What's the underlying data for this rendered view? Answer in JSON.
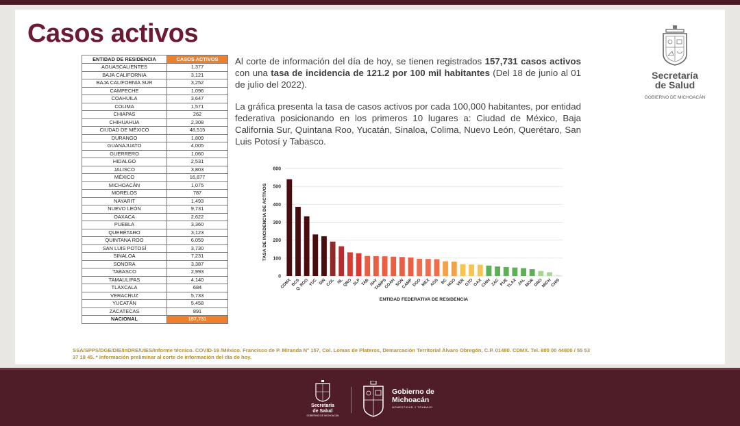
{
  "title": "Casos activos",
  "table": {
    "headers": [
      "ENTIDAD DE RESIDENCIA",
      "CASOS ACTIVOS"
    ],
    "rows": [
      [
        "AGUASCALIENTES",
        "1,377"
      ],
      [
        "BAJA CALIFORNIA",
        "3,121"
      ],
      [
        "BAJA CALIFORNIA SUR",
        "3,252"
      ],
      [
        "CAMPECHE",
        "1,096"
      ],
      [
        "COAHUILA",
        "3,647"
      ],
      [
        "COLIMA",
        "1,571"
      ],
      [
        "CHIAPAS",
        "262"
      ],
      [
        "CHIHUAHUA",
        "2,308"
      ],
      [
        "CIUDAD DE MÉXICO",
        "48,515"
      ],
      [
        "DURANGO",
        "1,809"
      ],
      [
        "GUANAJUATO",
        "4,005"
      ],
      [
        "GUERRERO",
        "1,060"
      ],
      [
        "HIDALGO",
        "2,531"
      ],
      [
        "JALISCO",
        "3,803"
      ],
      [
        "MÉXICO",
        "16,877"
      ],
      [
        "MICHOACÁN",
        "1,075"
      ],
      [
        "MORELOS",
        "787"
      ],
      [
        "NAYARIT",
        "1,493"
      ],
      [
        "NUEVO LEÓN",
        "9,731"
      ],
      [
        "OAXACA",
        "2,622"
      ],
      [
        "PUEBLA",
        "3,360"
      ],
      [
        "QUERÉTARO",
        "3,123"
      ],
      [
        "QUINTANA ROO",
        "6,059"
      ],
      [
        "SAN LUIS POTOSÍ",
        "3,730"
      ],
      [
        "SINALOA",
        "7,231"
      ],
      [
        "SONORA",
        "3,387"
      ],
      [
        "TABASCO",
        "2,993"
      ],
      [
        "TAMAULIPAS",
        "4,140"
      ],
      [
        "TLAXCALA",
        "684"
      ],
      [
        "VERACRUZ",
        "5,733"
      ],
      [
        "YUCATÁN",
        "5,458"
      ],
      [
        "ZACATECAS",
        "891"
      ]
    ],
    "total_label": "NACIONAL",
    "total_value": "157,731"
  },
  "paragraph1": {
    "a": "Al corte de información del día de hoy, se tienen registrados ",
    "b": "157,731 casos activos",
    "c": " con una ",
    "d": "tasa de incidencia de 121.2 por 100 mil habitantes",
    "e": " (Del 18 de junio al 01 de julio del 2022)."
  },
  "paragraph2": "La gráfica presenta la tasa de casos activos por cada 100,000 habitantes, por entidad federativa posicionando en los primeros 10 lugares a: Ciudad de México, Baja California Sur, Quintana Roo, Yucatán, Sinaloa, Colima, Nuevo León, Querétaro, San Luis Potosí y Tabasco.",
  "chart_data": {
    "type": "bar",
    "xlabel": "ENTIDAD FEDERATIVA DE RESIDENCIA",
    "ylabel": "TASA DE INCIDENCIA DE ACTIVOS",
    "ylim": [
      0,
      600
    ],
    "yticks": [
      0,
      100,
      200,
      300,
      400,
      500,
      600
    ],
    "grid": true,
    "categories": [
      "CDMX",
      "BCS",
      "Q. ROO",
      "YUC",
      "SIN",
      "COL",
      "NL",
      "QRO",
      "SLP",
      "TAB",
      "NAY",
      "TAMPS",
      "COAH",
      "SON",
      "CAMP",
      "DGO",
      "MEX",
      "AGS",
      "BC",
      "HGO",
      "VER",
      "GTO",
      "OAX",
      "CHIH",
      "ZAC",
      "PUE",
      "TLAX",
      "JAL",
      "MOR",
      "GRO",
      "MICH",
      "CHIS"
    ],
    "values": [
      540,
      386,
      333,
      232,
      222,
      192,
      166,
      132,
      127,
      112,
      111,
      110,
      108,
      106,
      103,
      96,
      95,
      94,
      82,
      80,
      66,
      64,
      63,
      58,
      53,
      50,
      47,
      44,
      38,
      28,
      21,
      5
    ],
    "colors": [
      "#4a0d0f",
      "#4a0d0f",
      "#4a0d0f",
      "#4a0d0f",
      "#4a0d0f",
      "#8f2a2b",
      "#b72c2e",
      "#d93b33",
      "#d93b33",
      "#ea5f43",
      "#ea5f43",
      "#ea5f43",
      "#ea5f43",
      "#ea5f43",
      "#ea5f43",
      "#ef6d4d",
      "#ef6d4d",
      "#ef6d4d",
      "#f6a244",
      "#f6a244",
      "#f6c451",
      "#f6c451",
      "#f6c451",
      "#5fae58",
      "#5fae58",
      "#5fae58",
      "#5fae58",
      "#5fae58",
      "#5fae58",
      "#a8d596",
      "#a8d596",
      "#cfe8c1"
    ]
  },
  "logo": {
    "name_line1": "Secretaría",
    "name_line2": "de Salud",
    "subtitle": "GOBIERNO DE MICHOACÁN"
  },
  "footnote": "SSA/SPPS/DGE/DIE/InDRE/UIES/Informe técnico. COVID-19 /México. Francisco de P. Miranda N° 157, Col. Lomas de Plateros, Demarcación Territorial Álvaro Obregón, C.P. 01480. CDMX. Tel. 800 00 44800 / 55 53 37 18 45. * Información preliminar al corte de información del día de hoy.",
  "bottom": {
    "logo1_line1": "Secretaría",
    "logo1_line2": "de Salud",
    "logo1_sub": "GOBIERNO DE MICHOACÁN",
    "logo2_line1": "Gobierno de",
    "logo2_line2": "Michoacán",
    "logo2_sub": "HONESTIDAD Y TRABAJO"
  }
}
